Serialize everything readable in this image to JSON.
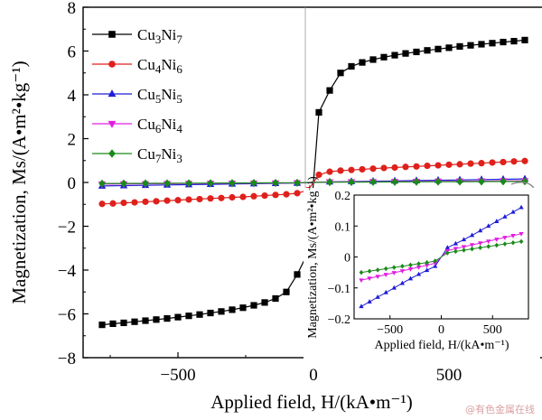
{
  "chart_data": [
    {
      "type": "line",
      "xlabel": "Applied field, H/(kA•m⁻¹)",
      "ylabel": "Magnetization, Ms/(A•m²•kg⁻¹)",
      "xlim": [
        -850,
        850
      ],
      "ylim": [
        -8,
        8
      ],
      "xticks": [
        "−500",
        "0",
        "500"
      ],
      "yticks": [
        "−8",
        "−6",
        "−4",
        "−2",
        "0",
        "2",
        "4",
        "6",
        "8"
      ],
      "legend_position": "top-left",
      "series": [
        {
          "name": "Cu3Ni7",
          "label_base": [
            "Cu",
            "3",
            "Ni",
            "7"
          ],
          "color": "#000000",
          "marker": "square",
          "points": [
            [
              -780,
              -6.5
            ],
            [
              -740,
              -6.45
            ],
            [
              -700,
              -6.41
            ],
            [
              -660,
              -6.36
            ],
            [
              -620,
              -6.31
            ],
            [
              -580,
              -6.26
            ],
            [
              -540,
              -6.21
            ],
            [
              -500,
              -6.15
            ],
            [
              -460,
              -6.09
            ],
            [
              -420,
              -6.03
            ],
            [
              -380,
              -5.96
            ],
            [
              -340,
              -5.89
            ],
            [
              -300,
              -5.81
            ],
            [
              -260,
              -5.72
            ],
            [
              -220,
              -5.61
            ],
            [
              -180,
              -5.48
            ],
            [
              -140,
              -5.3
            ],
            [
              -100,
              -5.0
            ],
            [
              -60,
              -4.2
            ],
            [
              -20,
              -3.2
            ],
            [
              0,
              0
            ],
            [
              20,
              3.2
            ],
            [
              60,
              4.2
            ],
            [
              100,
              5.0
            ],
            [
              140,
              5.3
            ],
            [
              180,
              5.48
            ],
            [
              220,
              5.61
            ],
            [
              260,
              5.72
            ],
            [
              300,
              5.81
            ],
            [
              340,
              5.89
            ],
            [
              380,
              5.96
            ],
            [
              420,
              6.03
            ],
            [
              460,
              6.09
            ],
            [
              500,
              6.15
            ],
            [
              540,
              6.21
            ],
            [
              580,
              6.26
            ],
            [
              620,
              6.31
            ],
            [
              660,
              6.36
            ],
            [
              700,
              6.41
            ],
            [
              740,
              6.45
            ],
            [
              780,
              6.5
            ]
          ]
        },
        {
          "name": "Cu4Ni6",
          "label_base": [
            "Cu",
            "4",
            "Ni",
            "6"
          ],
          "color": "#e0201b",
          "marker": "circle",
          "points": [
            [
              -780,
              -0.98
            ],
            [
              -740,
              -0.96
            ],
            [
              -700,
              -0.93
            ],
            [
              -660,
              -0.91
            ],
            [
              -620,
              -0.88
            ],
            [
              -580,
              -0.86
            ],
            [
              -540,
              -0.83
            ],
            [
              -500,
              -0.81
            ],
            [
              -460,
              -0.78
            ],
            [
              -420,
              -0.76
            ],
            [
              -380,
              -0.73
            ],
            [
              -340,
              -0.71
            ],
            [
              -300,
              -0.68
            ],
            [
              -260,
              -0.66
            ],
            [
              -220,
              -0.63
            ],
            [
              -180,
              -0.6
            ],
            [
              -140,
              -0.57
            ],
            [
              -100,
              -0.54
            ],
            [
              -60,
              -0.49
            ],
            [
              -20,
              -0.35
            ],
            [
              0,
              0
            ],
            [
              20,
              0.35
            ],
            [
              60,
              0.49
            ],
            [
              100,
              0.54
            ],
            [
              140,
              0.57
            ],
            [
              180,
              0.6
            ],
            [
              220,
              0.63
            ],
            [
              260,
              0.66
            ],
            [
              300,
              0.68
            ],
            [
              340,
              0.71
            ],
            [
              380,
              0.73
            ],
            [
              420,
              0.76
            ],
            [
              460,
              0.78
            ],
            [
              500,
              0.81
            ],
            [
              540,
              0.83
            ],
            [
              580,
              0.86
            ],
            [
              620,
              0.88
            ],
            [
              660,
              0.91
            ],
            [
              700,
              0.93
            ],
            [
              740,
              0.96
            ],
            [
              780,
              0.98
            ]
          ]
        },
        {
          "name": "Cu5Ni5",
          "label_base": [
            "Cu",
            "5",
            "Ni",
            "5"
          ],
          "color": "#1f1fd6",
          "marker": "triangle-up",
          "points": [
            [
              -780,
              -0.16
            ],
            [
              -700,
              -0.145
            ],
            [
              -620,
              -0.13
            ],
            [
              -540,
              -0.115
            ],
            [
              -460,
              -0.1
            ],
            [
              -380,
              -0.085
            ],
            [
              -300,
              -0.07
            ],
            [
              -220,
              -0.056
            ],
            [
              -140,
              -0.043
            ],
            [
              -60,
              -0.03
            ],
            [
              0,
              0
            ],
            [
              60,
              0.03
            ],
            [
              140,
              0.043
            ],
            [
              220,
              0.056
            ],
            [
              300,
              0.07
            ],
            [
              380,
              0.085
            ],
            [
              460,
              0.1
            ],
            [
              540,
              0.115
            ],
            [
              620,
              0.13
            ],
            [
              700,
              0.145
            ],
            [
              780,
              0.16
            ]
          ]
        },
        {
          "name": "Cu6Ni4",
          "label_base": [
            "Cu",
            "6",
            "Ni",
            "4"
          ],
          "color": "#e21ee2",
          "marker": "triangle-down",
          "points": [
            [
              -780,
              -0.075
            ],
            [
              -700,
              -0.069
            ],
            [
              -620,
              -0.063
            ],
            [
              -540,
              -0.057
            ],
            [
              -460,
              -0.051
            ],
            [
              -380,
              -0.045
            ],
            [
              -300,
              -0.039
            ],
            [
              -220,
              -0.033
            ],
            [
              -140,
              -0.027
            ],
            [
              -60,
              -0.02
            ],
            [
              0,
              0
            ],
            [
              60,
              0.02
            ],
            [
              140,
              0.027
            ],
            [
              220,
              0.033
            ],
            [
              300,
              0.039
            ],
            [
              380,
              0.045
            ],
            [
              460,
              0.051
            ],
            [
              540,
              0.057
            ],
            [
              620,
              0.063
            ],
            [
              700,
              0.069
            ],
            [
              780,
              0.075
            ]
          ]
        },
        {
          "name": "Cu7Ni3",
          "label_base": [
            "Cu",
            "7",
            "Ni",
            "3"
          ],
          "color": "#1a8a1a",
          "marker": "diamond",
          "points": [
            [
              -780,
              -0.05
            ],
            [
              -700,
              -0.046
            ],
            [
              -620,
              -0.042
            ],
            [
              -540,
              -0.038
            ],
            [
              -460,
              -0.034
            ],
            [
              -380,
              -0.03
            ],
            [
              -300,
              -0.026
            ],
            [
              -220,
              -0.022
            ],
            [
              -140,
              -0.018
            ],
            [
              -60,
              -0.013
            ],
            [
              0,
              0
            ],
            [
              60,
              0.013
            ],
            [
              140,
              0.018
            ],
            [
              220,
              0.022
            ],
            [
              300,
              0.026
            ],
            [
              380,
              0.03
            ],
            [
              460,
              0.034
            ],
            [
              540,
              0.038
            ],
            [
              620,
              0.042
            ],
            [
              700,
              0.046
            ],
            [
              780,
              0.05
            ]
          ]
        }
      ]
    },
    {
      "type": "line",
      "role": "inset",
      "xlabel": "Applied field, H/(kA•m⁻¹)",
      "ylabel": "Magnetization, Ms/(A•m²•kg⁻¹)",
      "xlim": [
        -850,
        850
      ],
      "ylim": [
        -0.2,
        0.2
      ],
      "xticks": [
        "−500",
        "0",
        "500"
      ],
      "yticks": [
        "−0.2",
        "−0.1",
        "0",
        "0.1",
        "0.2"
      ],
      "series_names": [
        "Cu5Ni5",
        "Cu6Ni4",
        "Cu7Ni3"
      ]
    }
  ],
  "watermark": "@有色金属在线"
}
